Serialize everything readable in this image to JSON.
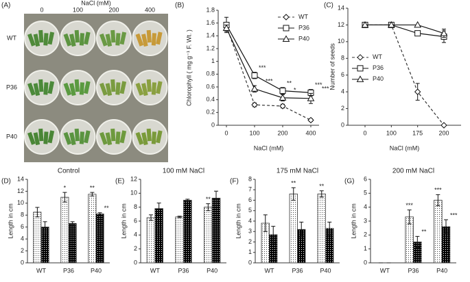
{
  "photo": {
    "panel": "(A)",
    "header": "NaCl (mM)",
    "columns": [
      "0",
      "100",
      "200",
      "400"
    ],
    "rows": [
      "WT",
      "P36",
      "P40"
    ]
  },
  "chart_data": [
    {
      "type": "line",
      "panel": "(B)",
      "x_label": "NaCl (mM)",
      "y_label": "Chlorophyll ( mg g⁻¹ F. Wt. )",
      "categories": [
        "0",
        "100",
        "200",
        "400"
      ],
      "ylim": [
        0,
        1.8
      ],
      "yticks": [
        0,
        0.2,
        0.4,
        0.6,
        0.8,
        1,
        1.2,
        1.4,
        1.6,
        1.8
      ],
      "legend": "upper right",
      "series": [
        {
          "name": "WT",
          "color": "#333333",
          "dashed": true,
          "marker": "diamond",
          "values": [
            1.55,
            0.32,
            0.3,
            0.08
          ],
          "errors": [
            0.05,
            0.03,
            0.03,
            0.02
          ],
          "significance": [
            null,
            null,
            null,
            null
          ]
        },
        {
          "name": "P36",
          "color": "#111111",
          "dashed": false,
          "marker": "square",
          "values": [
            1.57,
            0.78,
            0.54,
            0.51
          ],
          "errors": [
            0.12,
            0.05,
            0.05,
            0.05
          ],
          "significance": [
            null,
            "***",
            "**",
            "***"
          ]
        },
        {
          "name": "P40",
          "color": "#111111",
          "dashed": false,
          "marker": "triangle",
          "values": [
            1.52,
            0.57,
            0.43,
            0.42
          ],
          "errors": [
            0.05,
            0.05,
            0.05,
            0.08
          ],
          "significance": [
            null,
            "***",
            "*",
            "***"
          ]
        }
      ]
    },
    {
      "type": "line",
      "panel": "(C)",
      "x_label": "NaCl (mM)",
      "y_label": "Number of seeds",
      "categories": [
        "0",
        "100",
        "175",
        "200"
      ],
      "ylim": [
        0,
        14
      ],
      "yticks": [
        0,
        2,
        4,
        6,
        8,
        10,
        12,
        14
      ],
      "legend": "center left",
      "series": [
        {
          "name": "WT",
          "color": "#333333",
          "dashed": true,
          "marker": "diamond",
          "values": [
            12,
            12,
            4,
            0
          ],
          "errors": [
            0,
            0,
            1,
            0
          ],
          "significance": [
            null,
            null,
            null,
            null
          ]
        },
        {
          "name": "P36",
          "color": "#111111",
          "dashed": false,
          "marker": "square",
          "values": [
            12,
            12,
            11,
            10.6
          ],
          "errors": [
            0,
            0,
            0.3,
            0.7
          ],
          "significance": [
            null,
            null,
            null,
            null
          ]
        },
        {
          "name": "P40",
          "color": "#111111",
          "dashed": false,
          "marker": "triangle",
          "values": [
            12,
            12,
            12,
            11
          ],
          "errors": [
            0,
            0,
            0,
            0.5
          ],
          "significance": [
            null,
            null,
            null,
            null
          ]
        }
      ]
    },
    {
      "type": "bar",
      "panel": "(D)",
      "title": "Control",
      "y_label": "Length in cm",
      "categories": [
        "WT",
        "P36",
        "P40"
      ],
      "ylim": [
        0,
        14
      ],
      "yticks": [
        0,
        2,
        4,
        6,
        8,
        10,
        12,
        14
      ],
      "series": [
        {
          "color": "#ffffff",
          "pattern": "dots",
          "values": [
            8.5,
            11.0,
            11.5
          ],
          "errors": [
            0.8,
            0.8,
            0.3
          ],
          "significance": [
            null,
            "*",
            "**"
          ]
        },
        {
          "color": "#000000",
          "pattern": "dots",
          "values": [
            6.0,
            6.6,
            8.2
          ],
          "errors": [
            0.9,
            0.3,
            0.2
          ],
          "significance": [
            null,
            null,
            "**"
          ]
        }
      ]
    },
    {
      "type": "bar",
      "panel": "(E)",
      "title": "100 mM NaCl",
      "y_label": "Length in cm",
      "categories": [
        "WT",
        "P36",
        "P40"
      ],
      "ylim": [
        0,
        12
      ],
      "yticks": [
        0,
        2,
        4,
        6,
        8,
        10,
        12
      ],
      "series": [
        {
          "color": "#ffffff",
          "pattern": "dots",
          "values": [
            6.5,
            6.6,
            8.0
          ],
          "errors": [
            0.4,
            0.1,
            0.5
          ],
          "significance": [
            null,
            null,
            "**"
          ]
        },
        {
          "color": "#000000",
          "pattern": "dots",
          "values": [
            7.8,
            9.0,
            9.3
          ],
          "errors": [
            0.8,
            0.15,
            1.0
          ],
          "significance": [
            null,
            null,
            null
          ]
        }
      ]
    },
    {
      "type": "bar",
      "panel": "(F)",
      "title": "175 mM NaCl",
      "y_label": "Length in cm",
      "categories": [
        "WT",
        "P36",
        "P40"
      ],
      "ylim": [
        0,
        8
      ],
      "yticks": [
        0,
        1,
        2,
        3,
        4,
        5,
        6,
        7,
        8
      ],
      "series": [
        {
          "color": "#ffffff",
          "pattern": "dots",
          "values": [
            3.8,
            6.6,
            6.6
          ],
          "errors": [
            0.8,
            0.6,
            0.3
          ],
          "significance": [
            null,
            "**",
            "**"
          ]
        },
        {
          "color": "#000000",
          "pattern": "dots",
          "values": [
            2.7,
            3.2,
            3.3
          ],
          "errors": [
            0.8,
            0.7,
            0.6
          ],
          "significance": [
            null,
            null,
            null
          ]
        }
      ]
    },
    {
      "type": "bar",
      "panel": "(G)",
      "title": "200 mM NaCl",
      "y_label": "Length in cm",
      "categories": [
        "WT",
        "P36",
        "P40"
      ],
      "ylim": [
        0,
        6
      ],
      "yticks": [
        0,
        1,
        2,
        3,
        4,
        5,
        6
      ],
      "series": [
        {
          "color": "#ffffff",
          "pattern": "dots",
          "values": [
            0,
            3.3,
            4.5
          ],
          "errors": [
            0,
            0.5,
            0.4
          ],
          "significance": [
            null,
            "***",
            "***"
          ]
        },
        {
          "color": "#000000",
          "pattern": "dots",
          "values": [
            0,
            1.5,
            2.6
          ],
          "errors": [
            0,
            0.4,
            0.5
          ],
          "significance": [
            null,
            "**",
            "***"
          ]
        }
      ]
    }
  ]
}
